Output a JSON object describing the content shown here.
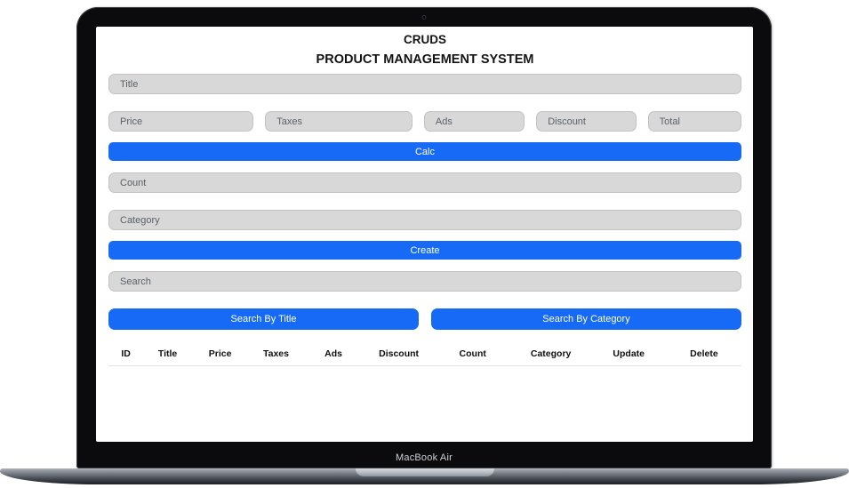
{
  "device": {
    "label": "MacBook Air"
  },
  "app": {
    "title_line1": "CRUDS",
    "title_line2": "PRODUCT MANAGEMENT SYSTEM",
    "fields": {
      "title": {
        "placeholder": "Title",
        "value": ""
      },
      "price": {
        "placeholder": "Price",
        "value": ""
      },
      "taxes": {
        "placeholder": "Taxes",
        "value": ""
      },
      "ads": {
        "placeholder": "Ads",
        "value": ""
      },
      "discount": {
        "placeholder": "Discount",
        "value": ""
      },
      "total": {
        "placeholder": "Total",
        "value": ""
      },
      "count": {
        "placeholder": "Count",
        "value": ""
      },
      "category": {
        "placeholder": "Category",
        "value": ""
      },
      "search": {
        "placeholder": "Search",
        "value": ""
      }
    },
    "buttons": {
      "calc": "Calc",
      "create": "Create",
      "search_by_title": "Search By Title",
      "search_by_category": "Search By Category"
    },
    "table": {
      "headers": [
        "ID",
        "Title",
        "Price",
        "Taxes",
        "Ads",
        "Discount",
        "Count",
        "Category",
        "Update",
        "Delete"
      ],
      "rows": []
    },
    "colors": {
      "accent_blue": "#166af5",
      "input_gray": "#d8d8d8",
      "text_dark": "#131313"
    }
  }
}
